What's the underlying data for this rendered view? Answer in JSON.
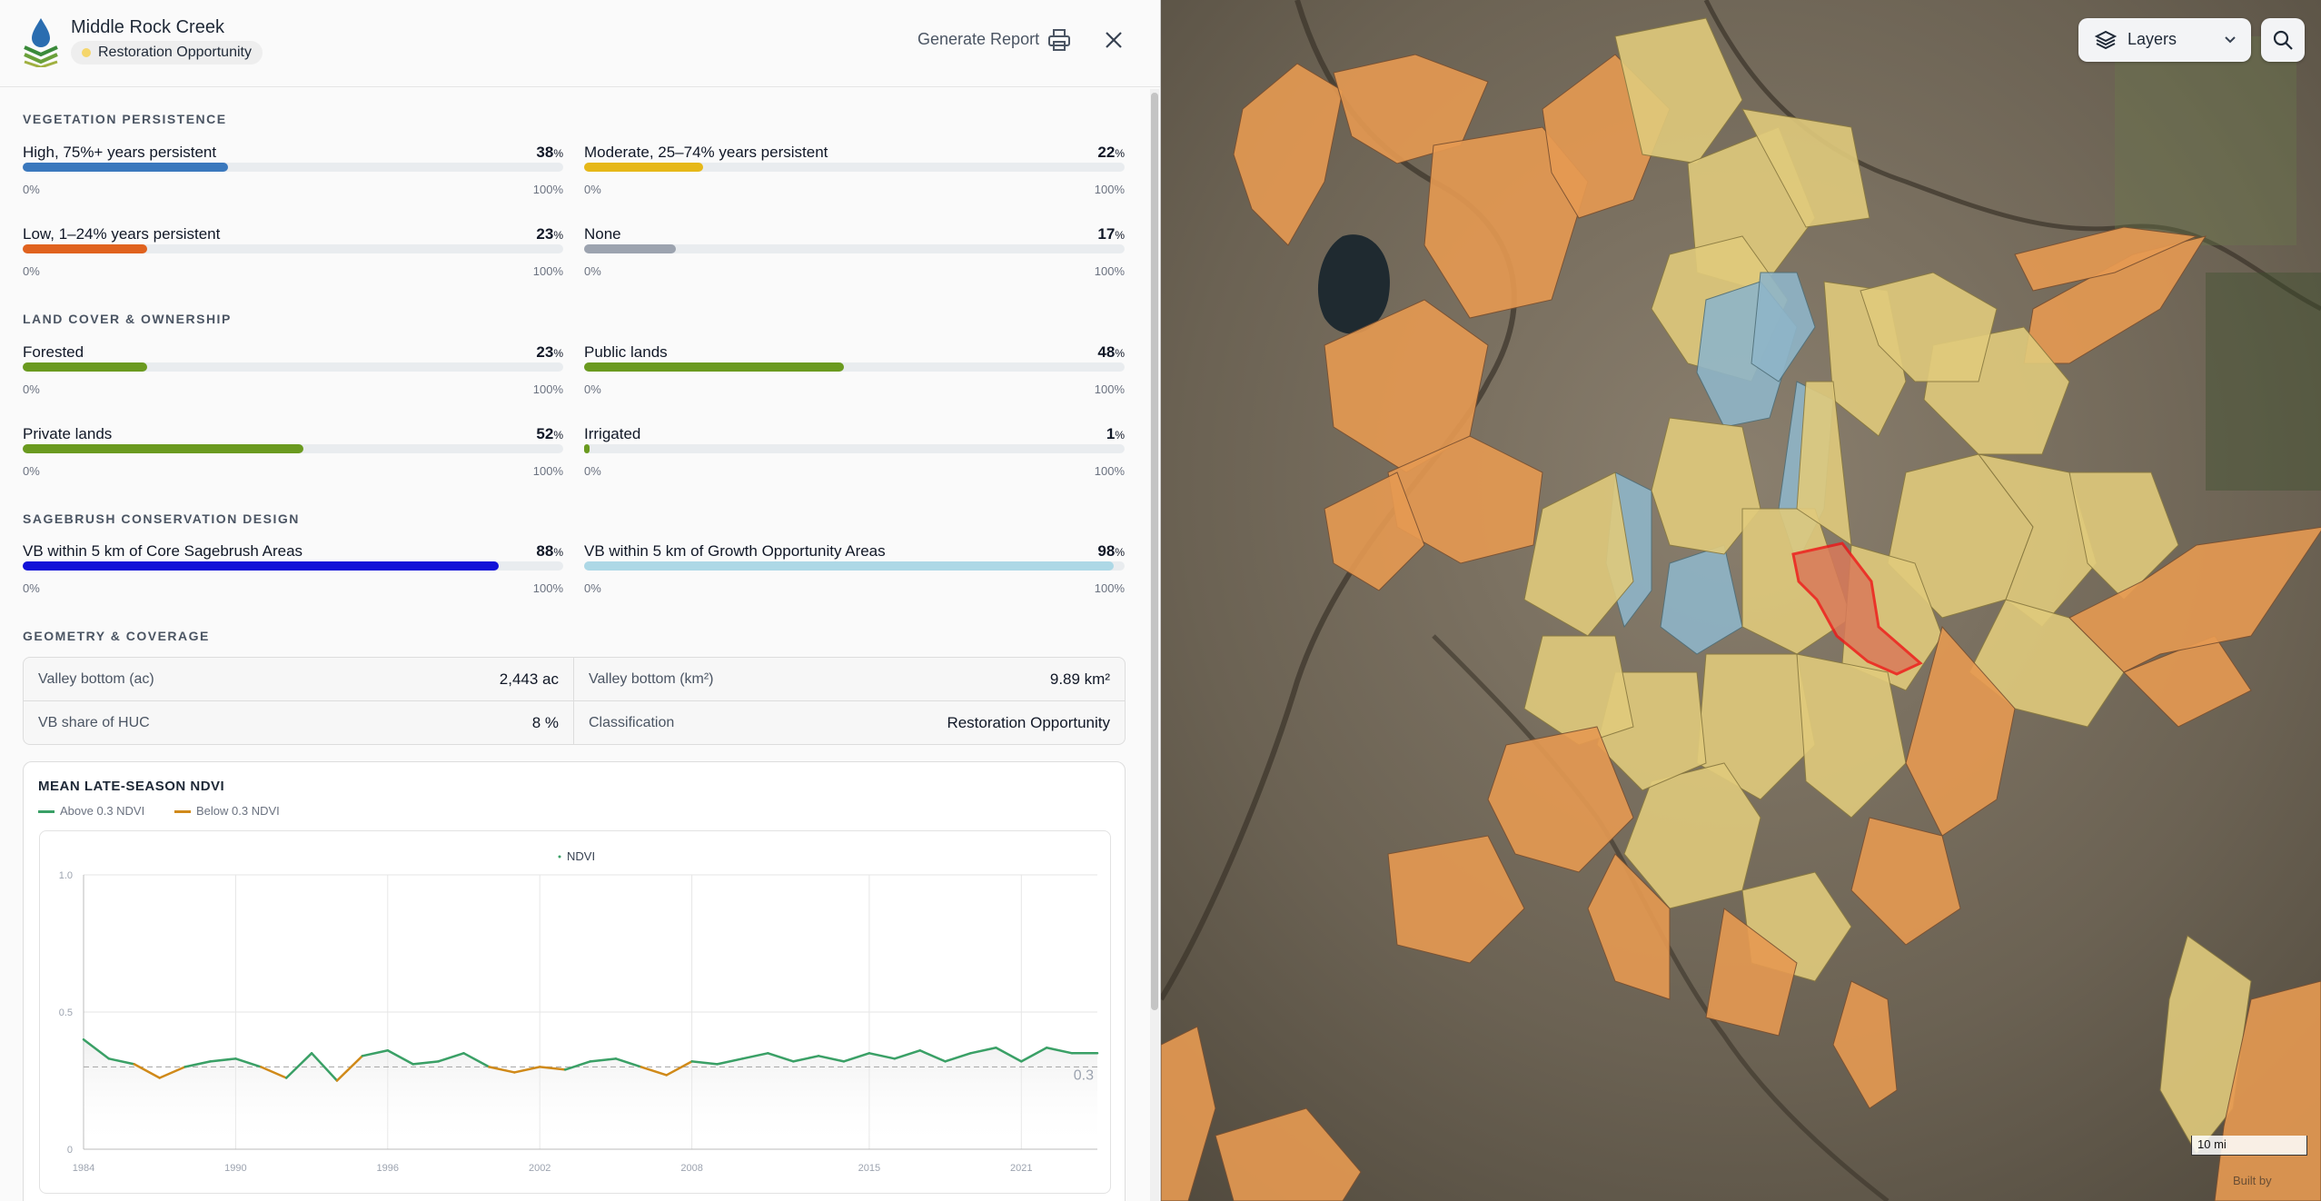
{
  "header": {
    "title": "Middle Rock Creek",
    "badge": "Restoration Opportunity",
    "badge_color": "#f5d66b",
    "generate_report": "Generate Report",
    "icons": [
      "logo-icon",
      "print-icon",
      "close-icon"
    ]
  },
  "sections": {
    "vegetation": "VEGETATION PERSISTENCE",
    "landcover": "LAND COVER & OWNERSHIP",
    "sagebrush": "SAGEBRUSH CONSERVATION DESIGN",
    "geometry": "GEOMETRY & COVERAGE"
  },
  "metrics": [
    {
      "label": "High, 75%+ years persistent",
      "value": "38",
      "unit": "%",
      "fraction": 0.38,
      "color": "#3a78bd",
      "min": "0%",
      "max": "100%"
    },
    {
      "label": "Moderate, 25–74% years persistent",
      "value": "22",
      "unit": "%",
      "fraction": 0.22,
      "color": "#e6b818",
      "min": "0%",
      "max": "100%"
    },
    {
      "label": "Low, 1–24% years persistent",
      "value": "23",
      "unit": "%",
      "fraction": 0.23,
      "color": "#e0621e",
      "min": "0%",
      "max": "100%"
    },
    {
      "label": "None",
      "value": "17",
      "unit": "%",
      "fraction": 0.17,
      "color": "#9ca3af",
      "min": "0%",
      "max": "100%"
    },
    {
      "label": "Forested",
      "value": "23",
      "unit": "%",
      "fraction": 0.23,
      "color": "#6a9a1f",
      "min": "0%",
      "max": "100%"
    },
    {
      "label": "Public lands",
      "value": "48",
      "unit": "%",
      "fraction": 0.48,
      "color": "#6a9a1f",
      "min": "0%",
      "max": "100%"
    },
    {
      "label": "Private lands",
      "value": "52",
      "unit": "%",
      "fraction": 0.52,
      "color": "#6a9a1f",
      "min": "0%",
      "max": "100%"
    },
    {
      "label": "Irrigated",
      "value": "1",
      "unit": "%",
      "fraction": 0.01,
      "color": "#6a9a1f",
      "min": "0%",
      "max": "100%"
    },
    {
      "label": "VB within 5 km of Core Sagebrush Areas",
      "value": "88",
      "unit": "%",
      "fraction": 0.88,
      "color": "#1212d8",
      "min": "0%",
      "max": "100%"
    },
    {
      "label": "VB within 5 km of Growth Opportunity Areas",
      "value": "98",
      "unit": "%",
      "fraction": 0.98,
      "color": "#add8e6",
      "min": "0%",
      "max": "100%"
    }
  ],
  "geometry": {
    "vb_ac_label": "Valley bottom (ac)",
    "vb_ac_value": "2,443 ac",
    "vb_km_label": "Valley bottom (km²)",
    "vb_km_value": "9.89 km²",
    "vb_share_label": "VB share of HUC",
    "vb_share_value": "8 %",
    "class_label": "Classification",
    "class_value": "Restoration Opportunity"
  },
  "chart_title": "MEAN LATE-SEASON NDVI",
  "chart_legend": {
    "above": "Above 0.3 NDVI",
    "below": "Below 0.3 NDVI",
    "series": "NDVI",
    "above_color": "#3aa066",
    "below_color": "#d08a1a"
  },
  "chart_data": {
    "type": "line",
    "title": "MEAN LATE-SEASON NDVI",
    "xlabel": "",
    "ylabel": "",
    "xlim": [
      1984,
      2024
    ],
    "ylim": [
      0,
      1.0
    ],
    "yticks": [
      "0",
      "0.5",
      "1.0"
    ],
    "xticks": [
      "1984",
      "1990",
      "1996",
      "2002",
      "2008",
      "2015",
      "2021"
    ],
    "threshold": 0.3,
    "threshold_label": "0.3",
    "series": [
      {
        "name": "NDVI",
        "x": [
          1984,
          1985,
          1986,
          1987,
          1988,
          1989,
          1990,
          1991,
          1992,
          1993,
          1994,
          1995,
          1996,
          1997,
          1998,
          1999,
          2000,
          2001,
          2002,
          2003,
          2004,
          2005,
          2006,
          2007,
          2008,
          2009,
          2010,
          2011,
          2012,
          2013,
          2014,
          2015,
          2016,
          2017,
          2018,
          2019,
          2020,
          2021,
          2022,
          2023,
          2024
        ],
        "y": [
          0.4,
          0.33,
          0.31,
          0.26,
          0.3,
          0.32,
          0.33,
          0.3,
          0.26,
          0.35,
          0.25,
          0.34,
          0.36,
          0.31,
          0.32,
          0.35,
          0.3,
          0.28,
          0.3,
          0.29,
          0.32,
          0.33,
          0.3,
          0.27,
          0.32,
          0.31,
          0.33,
          0.35,
          0.32,
          0.34,
          0.32,
          0.35,
          0.33,
          0.36,
          0.32,
          0.35,
          0.37,
          0.32,
          0.37,
          0.35,
          0.35
        ]
      }
    ]
  },
  "map": {
    "layers_label": "Layers",
    "scale": "10 mi",
    "builtby": "Built by",
    "icons": [
      "layers-icon",
      "chevron-down-icon",
      "search-icon"
    ]
  }
}
